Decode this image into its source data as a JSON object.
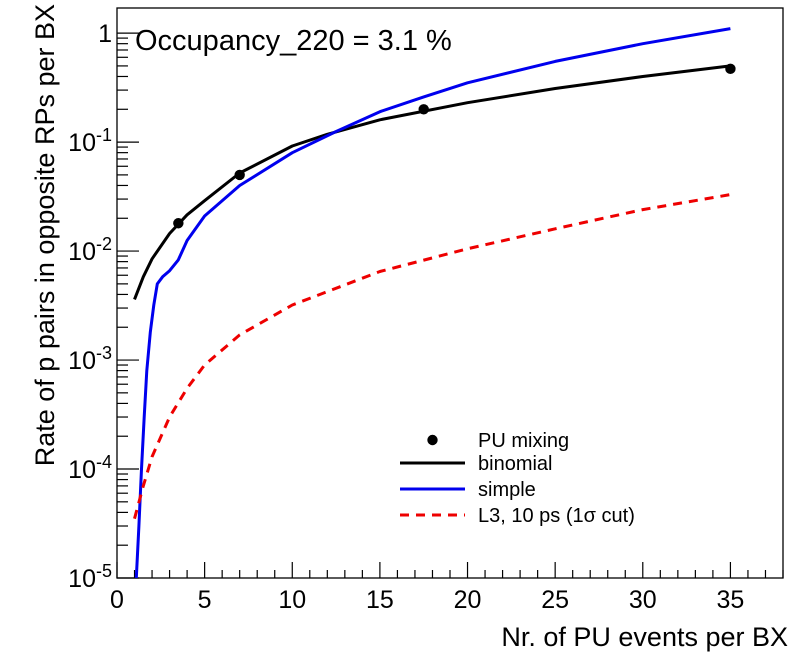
{
  "chart_data": {
    "type": "line",
    "title": "",
    "annotation": "Occupancy_220 = 3.1 %",
    "xlabel": "Nr. of PU events per BX",
    "ylabel": "Rate of p pairs in opposite RPs per BX",
    "xlim": [
      0,
      38
    ],
    "ylim": [
      1e-05,
      1.7
    ],
    "yscale": "log",
    "grid": false,
    "legend_position": "bottom-right",
    "x_ticks": [
      {
        "value": 0,
        "label": "0"
      },
      {
        "value": 5,
        "label": "5"
      },
      {
        "value": 10,
        "label": "10"
      },
      {
        "value": 15,
        "label": "15"
      },
      {
        "value": 20,
        "label": "20"
      },
      {
        "value": 25,
        "label": "25"
      },
      {
        "value": 30,
        "label": "30"
      },
      {
        "value": 35,
        "label": "35"
      }
    ],
    "y_ticks": [
      {
        "value": 1e-05,
        "base": "10",
        "exp": "-5"
      },
      {
        "value": 0.0001,
        "base": "10",
        "exp": "-4"
      },
      {
        "value": 0.001,
        "base": "10",
        "exp": "-3"
      },
      {
        "value": 0.01,
        "base": "10",
        "exp": "-2"
      },
      {
        "value": 0.1,
        "base": "10",
        "exp": "-1"
      },
      {
        "value": 1,
        "base": "1",
        "exp": ""
      }
    ],
    "series": [
      {
        "name": "PU mixing",
        "style": "markers",
        "color": "#000000",
        "x": [
          3.5,
          7,
          17.5,
          35
        ],
        "y": [
          0.018,
          0.05,
          0.2,
          0.47
        ]
      },
      {
        "name": "binomial",
        "style": "solid",
        "color": "#000000",
        "x": [
          1,
          1.5,
          2,
          3,
          4,
          5,
          7,
          10,
          12,
          15,
          20,
          25,
          30,
          35
        ],
        "y": [
          0.0036,
          0.0058,
          0.0085,
          0.0145,
          0.0215,
          0.029,
          0.052,
          0.092,
          0.118,
          0.16,
          0.23,
          0.31,
          0.4,
          0.5
        ]
      },
      {
        "name": "simple",
        "style": "solid",
        "color": "#0000ee",
        "x": [
          1.1,
          1.25,
          1.4,
          1.55,
          1.7,
          1.9,
          2.1,
          2.3,
          2.6,
          3,
          3.5,
          4,
          5,
          7,
          10,
          12.5,
          15,
          17.5,
          20,
          25,
          30,
          35
        ],
        "y": [
          1e-05,
          3e-05,
          0.0001,
          0.0003,
          0.0008,
          0.0018,
          0.0032,
          0.005,
          0.0058,
          0.0066,
          0.0083,
          0.0125,
          0.021,
          0.04,
          0.08,
          0.125,
          0.19,
          0.26,
          0.35,
          0.55,
          0.8,
          1.1
        ]
      },
      {
        "name": "L3, 10 ps (1σ cut)",
        "style": "dashed",
        "color": "#ee0000",
        "x": [
          1,
          1.5,
          2,
          3,
          4,
          5,
          7,
          10,
          15,
          20,
          25,
          30,
          35
        ],
        "y": [
          3.5e-05,
          7e-05,
          0.00013,
          0.0003,
          0.00055,
          0.0009,
          0.0017,
          0.0032,
          0.0065,
          0.0105,
          0.016,
          0.024,
          0.033
        ]
      }
    ]
  },
  "colors": {
    "axis": "#000000",
    "background": "#ffffff"
  }
}
